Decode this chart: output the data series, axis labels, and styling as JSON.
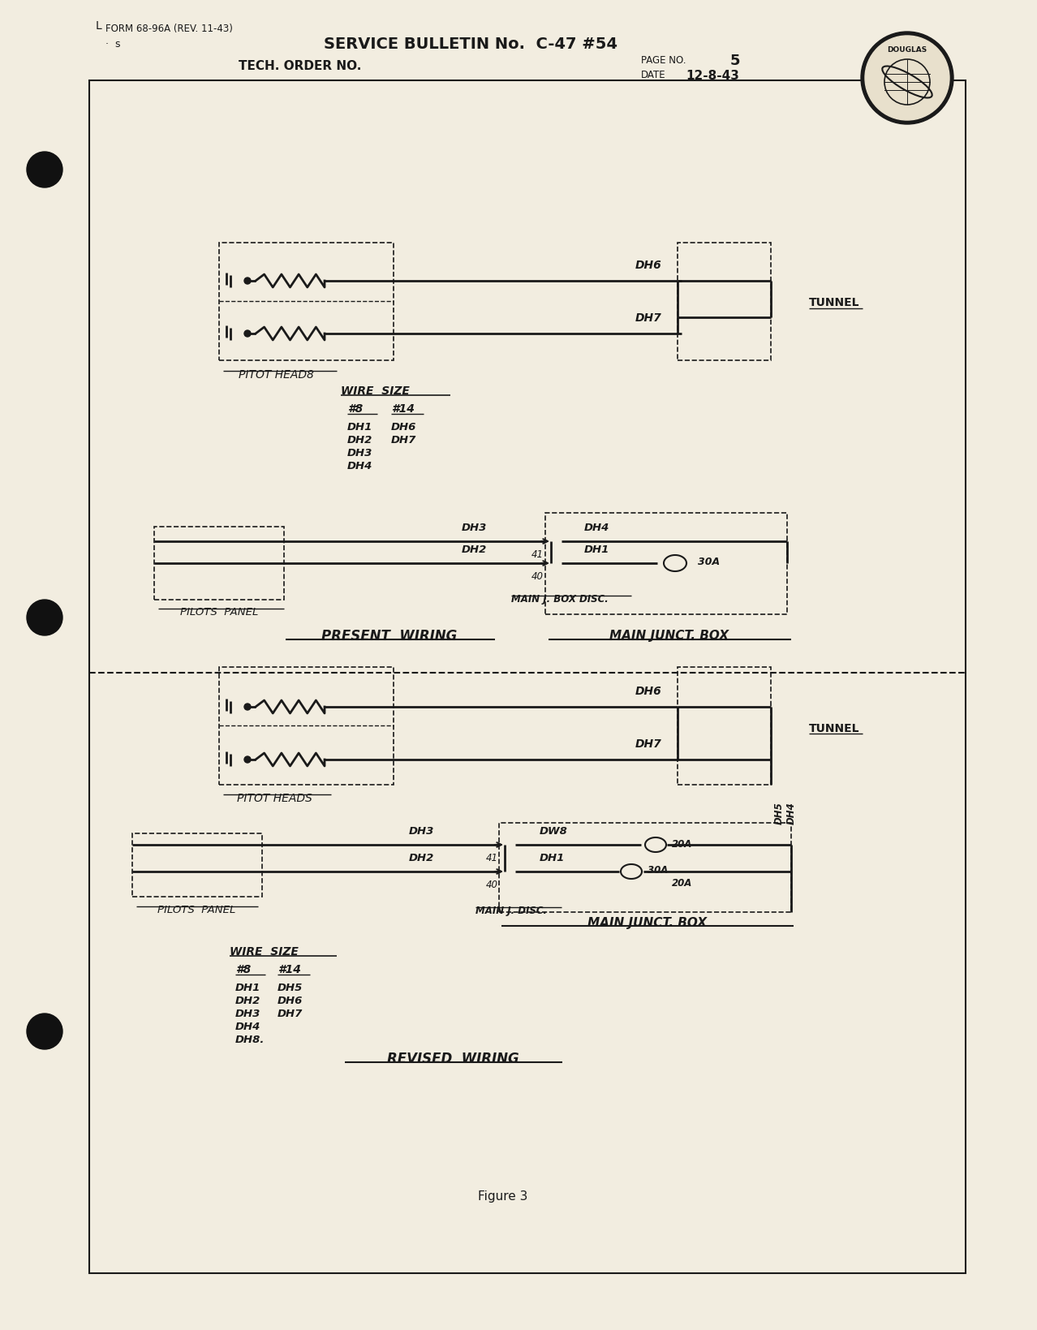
{
  "bg_color": "#f2ede0",
  "text_color": "#1a1a1a",
  "form_text": "FORM 68-96A (REV. 11-43)",
  "title": "SERVICE BULLETIN No.  C-47 #54",
  "tech_order_label": "TECH. ORDER NO.",
  "page_no_label": "PAGE NO.",
  "page_no": "5",
  "date_label": "DATE",
  "date": "12-8-43",
  "figure_label": "Figure 3"
}
